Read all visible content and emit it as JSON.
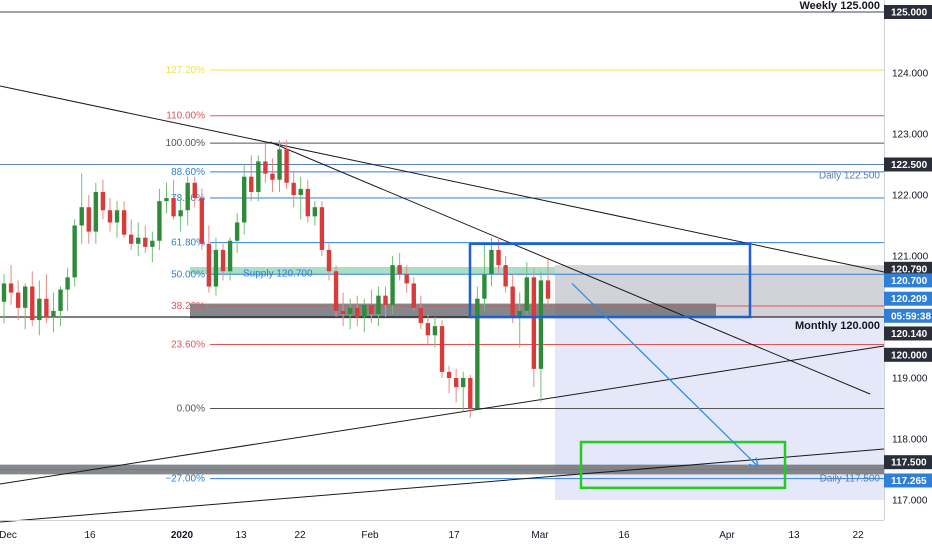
{
  "chart_data": {
    "type": "candlestick",
    "symbol": "",
    "price_axis": {
      "min": 116.75,
      "max": 125.2,
      "ticks": [
        "125.000",
        "124.000",
        "123.000",
        "122.000",
        "121.000",
        "119.000",
        "118.000",
        "117.000"
      ]
    },
    "time_axis": {
      "labels": [
        "Dec",
        "16",
        "2020",
        "13",
        "22",
        "Feb",
        "17",
        "Mar",
        "16",
        "Apr",
        "13",
        "22"
      ]
    },
    "candles": [
      {
        "o": 120.25,
        "h": 120.7,
        "l": 119.9,
        "c": 120.55
      },
      {
        "o": 120.55,
        "h": 120.85,
        "l": 120.2,
        "c": 120.4
      },
      {
        "o": 120.4,
        "h": 120.6,
        "l": 119.95,
        "c": 120.15
      },
      {
        "o": 120.15,
        "h": 120.55,
        "l": 119.8,
        "c": 120.5
      },
      {
        "o": 120.5,
        "h": 120.75,
        "l": 119.85,
        "c": 119.95
      },
      {
        "o": 119.95,
        "h": 120.6,
        "l": 119.7,
        "c": 120.3
      },
      {
        "o": 120.3,
        "h": 120.7,
        "l": 119.9,
        "c": 120.0
      },
      {
        "o": 120.0,
        "h": 120.4,
        "l": 119.75,
        "c": 120.1
      },
      {
        "o": 120.1,
        "h": 120.5,
        "l": 119.85,
        "c": 120.45
      },
      {
        "o": 120.45,
        "h": 120.8,
        "l": 120.1,
        "c": 120.65
      },
      {
        "o": 120.65,
        "h": 121.6,
        "l": 120.5,
        "c": 121.5
      },
      {
        "o": 121.5,
        "h": 122.35,
        "l": 121.2,
        "c": 121.8
      },
      {
        "o": 121.8,
        "h": 122.0,
        "l": 121.2,
        "c": 121.4
      },
      {
        "o": 121.4,
        "h": 122.2,
        "l": 121.2,
        "c": 122.05
      },
      {
        "o": 122.05,
        "h": 122.25,
        "l": 121.6,
        "c": 121.75
      },
      {
        "o": 121.75,
        "h": 121.95,
        "l": 121.4,
        "c": 121.55
      },
      {
        "o": 121.55,
        "h": 121.9,
        "l": 121.3,
        "c": 121.75
      },
      {
        "o": 121.75,
        "h": 121.9,
        "l": 121.3,
        "c": 121.35
      },
      {
        "o": 121.35,
        "h": 121.6,
        "l": 121.1,
        "c": 121.2
      },
      {
        "o": 121.2,
        "h": 121.55,
        "l": 121.0,
        "c": 121.3
      },
      {
        "o": 121.3,
        "h": 121.5,
        "l": 121.05,
        "c": 121.15
      },
      {
        "o": 121.15,
        "h": 121.4,
        "l": 120.9,
        "c": 121.25
      },
      {
        "o": 121.25,
        "h": 122.1,
        "l": 121.1,
        "c": 121.9
      },
      {
        "o": 121.9,
        "h": 122.2,
        "l": 121.7,
        "c": 121.95
      },
      {
        "o": 121.95,
        "h": 122.25,
        "l": 121.6,
        "c": 121.65
      },
      {
        "o": 121.65,
        "h": 122.0,
        "l": 121.4,
        "c": 121.75
      },
      {
        "o": 121.75,
        "h": 122.3,
        "l": 121.5,
        "c": 122.2
      },
      {
        "o": 122.2,
        "h": 122.3,
        "l": 121.8,
        "c": 121.95
      },
      {
        "o": 121.95,
        "h": 122.1,
        "l": 121.1,
        "c": 121.2
      },
      {
        "o": 121.2,
        "h": 121.5,
        "l": 120.4,
        "c": 120.5
      },
      {
        "o": 120.5,
        "h": 121.3,
        "l": 120.35,
        "c": 121.1
      },
      {
        "o": 121.1,
        "h": 121.2,
        "l": 120.6,
        "c": 120.75
      },
      {
        "o": 120.75,
        "h": 121.3,
        "l": 120.6,
        "c": 121.25
      },
      {
        "o": 121.25,
        "h": 121.7,
        "l": 121.05,
        "c": 121.55
      },
      {
        "o": 121.55,
        "h": 122.5,
        "l": 121.35,
        "c": 122.3
      },
      {
        "o": 122.3,
        "h": 122.65,
        "l": 121.9,
        "c": 122.05
      },
      {
        "o": 122.05,
        "h": 122.65,
        "l": 121.9,
        "c": 122.55
      },
      {
        "o": 122.55,
        "h": 122.85,
        "l": 122.2,
        "c": 122.35
      },
      {
        "o": 122.35,
        "h": 122.6,
        "l": 122.05,
        "c": 122.25
      },
      {
        "o": 122.25,
        "h": 122.9,
        "l": 122.05,
        "c": 122.75
      },
      {
        "o": 122.75,
        "h": 122.9,
        "l": 122.1,
        "c": 122.2
      },
      {
        "o": 122.2,
        "h": 122.4,
        "l": 121.8,
        "c": 122.0
      },
      {
        "o": 122.0,
        "h": 122.3,
        "l": 121.6,
        "c": 122.1
      },
      {
        "o": 122.1,
        "h": 122.25,
        "l": 121.55,
        "c": 121.65
      },
      {
        "o": 121.65,
        "h": 121.9,
        "l": 121.5,
        "c": 121.8
      },
      {
        "o": 121.8,
        "h": 121.9,
        "l": 121.0,
        "c": 121.1
      },
      {
        "o": 121.1,
        "h": 121.2,
        "l": 120.6,
        "c": 120.75
      },
      {
        "o": 120.75,
        "h": 120.85,
        "l": 120.0,
        "c": 120.1
      },
      {
        "o": 120.1,
        "h": 120.4,
        "l": 119.85,
        "c": 120.05
      },
      {
        "o": 120.05,
        "h": 120.3,
        "l": 119.8,
        "c": 120.15
      },
      {
        "o": 120.15,
        "h": 120.35,
        "l": 119.85,
        "c": 120.0
      },
      {
        "o": 120.0,
        "h": 120.3,
        "l": 119.75,
        "c": 120.2
      },
      {
        "o": 120.2,
        "h": 120.45,
        "l": 119.9,
        "c": 120.05
      },
      {
        "o": 120.05,
        "h": 120.5,
        "l": 119.85,
        "c": 120.35
      },
      {
        "o": 120.35,
        "h": 120.5,
        "l": 120.0,
        "c": 120.2
      },
      {
        "o": 120.2,
        "h": 121.0,
        "l": 120.05,
        "c": 120.85
      },
      {
        "o": 120.85,
        "h": 121.05,
        "l": 120.6,
        "c": 120.7
      },
      {
        "o": 120.7,
        "h": 120.85,
        "l": 120.4,
        "c": 120.55
      },
      {
        "o": 120.55,
        "h": 120.65,
        "l": 120.1,
        "c": 120.15
      },
      {
        "o": 120.15,
        "h": 120.35,
        "l": 119.8,
        "c": 119.9
      },
      {
        "o": 119.9,
        "h": 120.05,
        "l": 119.55,
        "c": 119.7
      },
      {
        "o": 119.7,
        "h": 120.0,
        "l": 119.5,
        "c": 119.85
      },
      {
        "o": 119.85,
        "h": 119.95,
        "l": 119.0,
        "c": 119.1
      },
      {
        "o": 119.1,
        "h": 119.2,
        "l": 118.75,
        "c": 119.0
      },
      {
        "o": 119.0,
        "h": 119.15,
        "l": 118.6,
        "c": 118.85
      },
      {
        "o": 118.85,
        "h": 119.1,
        "l": 118.45,
        "c": 119.0
      },
      {
        "o": 119.0,
        "h": 119.05,
        "l": 118.35,
        "c": 118.5
      },
      {
        "o": 118.5,
        "h": 120.5,
        "l": 118.5,
        "c": 120.3
      },
      {
        "o": 120.3,
        "h": 121.2,
        "l": 120.1,
        "c": 120.7
      },
      {
        "o": 120.7,
        "h": 121.3,
        "l": 120.5,
        "c": 121.1
      },
      {
        "o": 121.1,
        "h": 121.3,
        "l": 120.7,
        "c": 120.85
      },
      {
        "o": 120.85,
        "h": 121.0,
        "l": 120.4,
        "c": 120.5
      },
      {
        "o": 120.5,
        "h": 120.7,
        "l": 119.9,
        "c": 120.0
      },
      {
        "o": 120.0,
        "h": 120.4,
        "l": 119.5,
        "c": 120.1
      },
      {
        "o": 120.1,
        "h": 120.9,
        "l": 120.0,
        "c": 120.65
      },
      {
        "o": 120.65,
        "h": 120.8,
        "l": 118.85,
        "c": 119.15
      },
      {
        "o": 119.15,
        "h": 120.75,
        "l": 118.6,
        "c": 120.6
      },
      {
        "o": 120.6,
        "h": 120.95,
        "l": 120.2,
        "c": 120.3
      }
    ],
    "horizontal_levels": [
      {
        "price": 125.0,
        "label": "Weekly 125.000",
        "color": "#444444"
      },
      {
        "price": 122.5,
        "label": "Daily 122.500",
        "color": "#5a7fb0"
      },
      {
        "price": 120.0,
        "label": "Monthly 120.000",
        "color": "#000000"
      },
      {
        "price": 117.5,
        "label": "Daily 117.500",
        "color": "#5a7fb0"
      }
    ],
    "fibonacci": [
      {
        "level": "127.20%",
        "price": 124.05,
        "color": "#f2e24a"
      },
      {
        "level": "110.00%",
        "price": 123.3,
        "color": "#e05656"
      },
      {
        "level": "100.00%",
        "price": 122.85,
        "color": "#555555"
      },
      {
        "level": "88.60%",
        "price": 122.38,
        "color": "#2f7fd6"
      },
      {
        "level": "78.60%",
        "price": 121.95,
        "color": "#2f7fd6"
      },
      {
        "level": "61.80%",
        "price": 121.22,
        "color": "#2f7fd6"
      },
      {
        "level": "50.00%",
        "price": 120.7,
        "color": "#2f7fd6"
      },
      {
        "level": "38.20%",
        "price": 120.18,
        "color": "#e05656"
      },
      {
        "level": "23.60%",
        "price": 119.55,
        "color": "#e05656"
      },
      {
        "level": "0.00%",
        "price": 118.5,
        "color": "#555555"
      },
      {
        "level": "−27.00%",
        "price": 117.35,
        "color": "#2f7fd6"
      }
    ],
    "annotations": {
      "supply_label": "Supply 120.700"
    },
    "axis_badges": [
      {
        "text": "125.000",
        "price": 125.0,
        "bg": "#2a2e39"
      },
      {
        "text": "122.500",
        "price": 122.5,
        "bg": "#2a2e39"
      },
      {
        "text": "120.790",
        "price": 120.79,
        "bg": "#2a2e39"
      },
      {
        "text": "120.700",
        "price": 120.6,
        "bg": "#2f7fd6"
      },
      {
        "text": "120.209",
        "price": 120.3,
        "bg": "#2f7fd6"
      },
      {
        "text": "05:59:38",
        "price": 120.02,
        "bg": "#2f7fd6"
      },
      {
        "text": "120.140",
        "price": 119.73,
        "bg": "#2a2e39"
      },
      {
        "text": "120.000",
        "price": 119.38,
        "bg": "#2a2e39"
      },
      {
        "text": "117.500",
        "price": 117.62,
        "bg": "#2a2e39"
      },
      {
        "text": "117.265",
        "price": 117.32,
        "bg": "#2f7fd6"
      }
    ],
    "grid": false,
    "legend": "none"
  }
}
